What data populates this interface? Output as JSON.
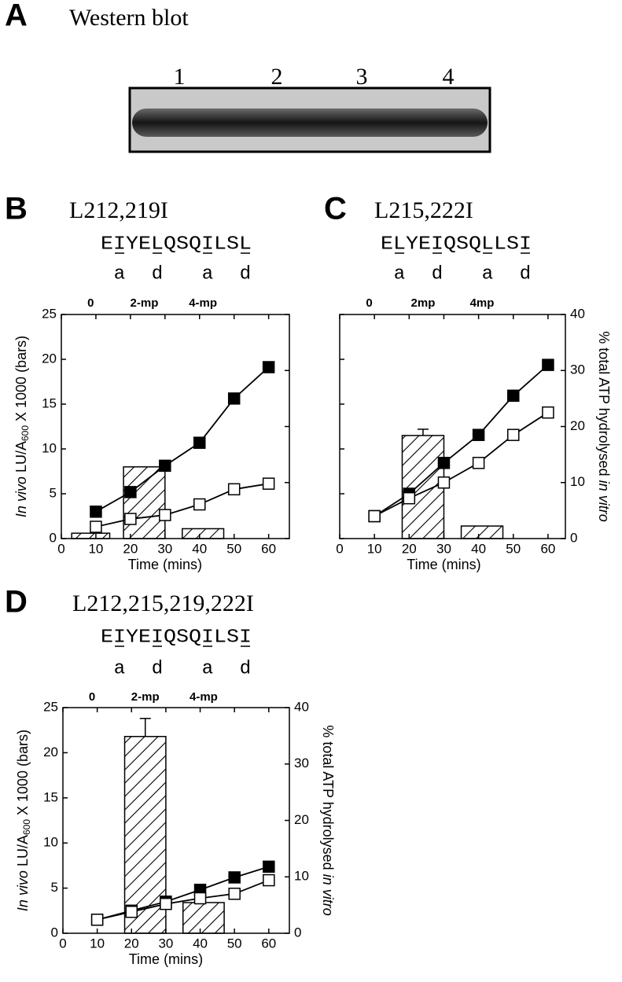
{
  "blot": {
    "letter": "A",
    "title": "Western blot",
    "lanes": [
      "1",
      "2",
      "3",
      "4"
    ]
  },
  "chart_data": [
    {
      "type": "bar_line",
      "letter": "B",
      "title": "L212,219I",
      "sequence": [
        "E",
        "I",
        "YE",
        "L",
        "QSQ",
        "I",
        "LS",
        "L"
      ],
      "heptad": [
        "a",
        "d",
        "a",
        "d"
      ],
      "xlabel": "Time (mins)",
      "ylabel_italic": "In vivo",
      "ylabel": "LU/A",
      "ylabel_sub": "600",
      "ylabel_end": "X 1000 (bars)",
      "yticklabels": true,
      "y2ticklabels": false,
      "xlim": [
        0,
        66
      ],
      "xticks": [
        0,
        10,
        20,
        30,
        40,
        50,
        60
      ],
      "ylim": [
        0,
        25
      ],
      "yticks": [
        0,
        5,
        10,
        15,
        20,
        25
      ],
      "y2lim": [
        0,
        40
      ],
      "y2ticks": [
        0,
        10,
        20,
        30,
        40
      ],
      "bars": {
        "names": [
          "0",
          "2-mp",
          "4-mp"
        ],
        "spans": [
          [
            3,
            14
          ],
          [
            18,
            30
          ],
          [
            35,
            47
          ]
        ],
        "values": [
          0.6,
          8,
          1.1
        ],
        "errors": [
          null,
          null,
          null
        ]
      },
      "series": [
        {
          "marker": "filled",
          "color": "#000000",
          "axis": "y2",
          "x": [
            10,
            20,
            30,
            40,
            50,
            60
          ],
          "values": [
            4.8,
            8.3,
            13,
            17.1,
            25,
            30.6
          ]
        },
        {
          "marker": "open",
          "color": "#000000",
          "axis": "y2",
          "x": [
            10,
            20,
            30,
            40,
            50,
            60
          ],
          "values": [
            2.1,
            3.5,
            4.2,
            6.1,
            8.8,
            9.8
          ]
        }
      ]
    },
    {
      "type": "bar_line",
      "letter": "C",
      "title": "L215,222I",
      "sequence": [
        "E",
        "L",
        "YE",
        "I",
        "QSQ",
        "L",
        "LS",
        "I"
      ],
      "heptad": [
        "a",
        "d",
        "a",
        "d"
      ],
      "xlabel": "Time (mins)",
      "y2label": "% total ATP hydrolysed",
      "y2label_italic": "in vitro",
      "yticklabels": false,
      "y2ticklabels": true,
      "xlim": [
        0,
        65
      ],
      "xticks": [
        0,
        10,
        20,
        30,
        40,
        50,
        60
      ],
      "ylim": [
        0,
        25
      ],
      "yticks": [
        0,
        5,
        10,
        15,
        20,
        25
      ],
      "y2lim": [
        0,
        40
      ],
      "y2ticks": [
        0,
        10,
        20,
        30,
        40
      ],
      "bars": {
        "names": [
          "0",
          "2mp",
          "4mp"
        ],
        "spans": [
          [
            3,
            14
          ],
          [
            18,
            30
          ],
          [
            35,
            47
          ]
        ],
        "values": [
          0,
          11.5,
          1.4
        ],
        "errors": [
          null,
          0.7,
          null
        ]
      },
      "series": [
        {
          "marker": "filled",
          "color": "#000000",
          "axis": "y2",
          "x": [
            10,
            20,
            30,
            40,
            50,
            60
          ],
          "values": [
            4,
            8,
            13.5,
            18.5,
            25.5,
            31
          ]
        },
        {
          "marker": "open",
          "color": "#000000",
          "axis": "y2",
          "x": [
            10,
            20,
            30,
            40,
            50,
            60
          ],
          "values": [
            4,
            7.2,
            10,
            13.5,
            18.5,
            22.5
          ]
        }
      ]
    },
    {
      "type": "bar_line",
      "letter": "D",
      "title": "L212,215,219,222I",
      "sequence": [
        "E",
        "I",
        "YE",
        "I",
        "QSQ",
        "I",
        "LS",
        "I"
      ],
      "heptad": [
        "a",
        "d",
        "a",
        "d"
      ],
      "xlabel": "Time (mins)",
      "ylabel_italic": "In vivo",
      "ylabel": "LU/A",
      "ylabel_sub": "600",
      "ylabel_end": "X 1000 (bars)",
      "y2label": "% total ATP hydrolysed",
      "y2label_italic": "in vitro",
      "yticklabels": true,
      "y2ticklabels": true,
      "xlim": [
        0,
        66
      ],
      "xticks": [
        0,
        10,
        20,
        30,
        40,
        50,
        60
      ],
      "ylim": [
        0,
        25
      ],
      "yticks": [
        0,
        5,
        10,
        15,
        20,
        25
      ],
      "y2lim": [
        0,
        40
      ],
      "y2ticks": [
        0,
        10,
        20,
        30,
        40
      ],
      "bars": {
        "names": [
          "0",
          "2-mp",
          "4-mp"
        ],
        "spans": [
          [
            3,
            14
          ],
          [
            18,
            30
          ],
          [
            35,
            47
          ]
        ],
        "values": [
          0,
          21.8,
          3.4
        ],
        "errors": [
          null,
          2,
          null
        ]
      },
      "series": [
        {
          "marker": "filled",
          "color": "#000000",
          "axis": "y2",
          "x": [
            10,
            20,
            30,
            40,
            50,
            60
          ],
          "values": [
            2.4,
            4,
            5.6,
            7.7,
            9.9,
            11.8
          ]
        },
        {
          "marker": "open",
          "color": "#000000",
          "axis": "y2",
          "x": [
            10,
            20,
            30,
            40,
            50,
            60
          ],
          "values": [
            2.4,
            3.8,
            5.2,
            6.2,
            7,
            9.4
          ]
        }
      ]
    }
  ]
}
